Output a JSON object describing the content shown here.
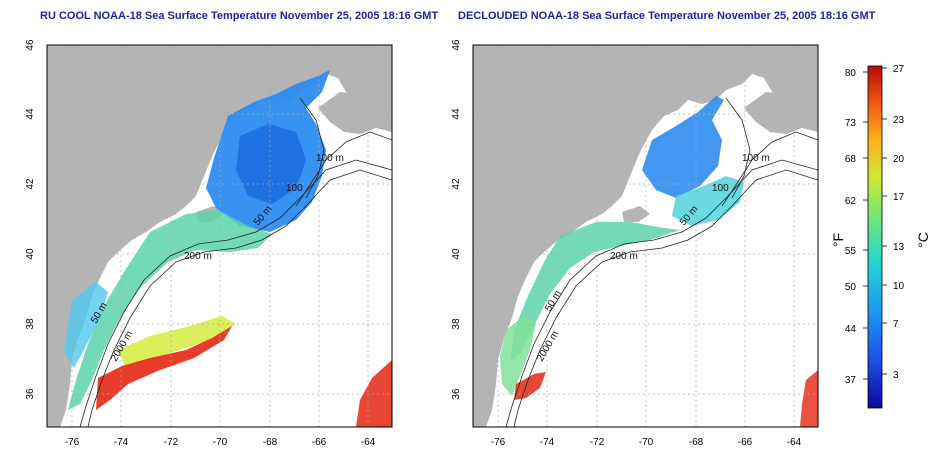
{
  "panels": [
    {
      "id": "left",
      "title": "RU COOL NOAA-18 Sea Surface Temperature November 25, 2005 18:16 GMT",
      "contours": [
        "100 m",
        "100",
        "50 m",
        "200 m",
        "50 m",
        "2000 m"
      ]
    },
    {
      "id": "right",
      "title": "DECLOUDED NOAA-18 Sea Surface Temperature November 25, 2005 18:16 GMT",
      "contours": [
        "100 m",
        "100",
        "50 m",
        "200 m",
        "50 m",
        "2000 m"
      ]
    }
  ],
  "axes": {
    "x_ticks": [
      "-76",
      "-74",
      "-72",
      "-70",
      "-68",
      "-66",
      "-64"
    ],
    "y_ticks": [
      "46",
      "44",
      "42",
      "40",
      "38",
      "36"
    ]
  },
  "colorbar": {
    "f_label": "°F",
    "c_label": "°C",
    "f_ticks": [
      "80",
      "73",
      "68",
      "62",
      "55",
      "50",
      "44",
      "37"
    ],
    "c_ticks": [
      "27",
      "23",
      "20",
      "17",
      "13",
      "10",
      "7",
      "3"
    ],
    "colors": [
      "#0a0a9a",
      "#1e50e6",
      "#1e96f0",
      "#28d2d2",
      "#6ee67a",
      "#d2e632",
      "#fab41e",
      "#f05a14",
      "#b40a0a"
    ]
  },
  "colors": {
    "land": "#b4b4b4",
    "title": "#1f1fa8",
    "cold_water": "#2d8cf0",
    "mid_water": "#5ad2aa",
    "warm_water": "#e6321e"
  }
}
